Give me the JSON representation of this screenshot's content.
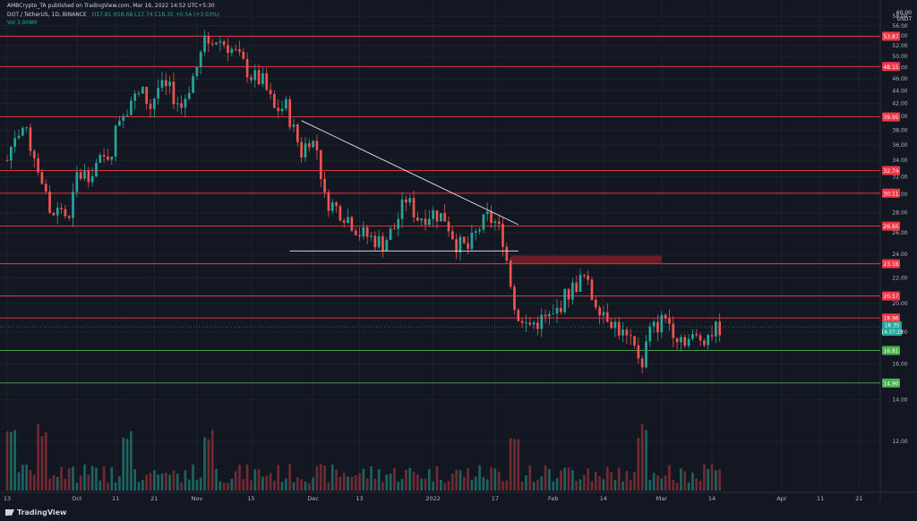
{
  "header": {
    "attribution": "AMBCrypto_TA published on TradingView.com, Mar 16, 2022 14:52 UTC+5:30",
    "symbol": "DOT / TetherUS, 1D, BINANCE",
    "ohlc": "O17.81 H18.68 L17.74 C18.35 +0.54 (+3.03%)",
    "volume": "Vol 3.908M"
  },
  "footer": {
    "brand": "TradingView"
  },
  "price_axis": {
    "unit_top": "60.00",
    "currency": "USDT"
  },
  "chart_data": {
    "type": "candlestick",
    "symbol": "DOT / TetherUS",
    "timeframe": "1D",
    "ylim": [
      10,
      60
    ],
    "yticks": [
      12,
      14,
      16,
      18,
      20,
      22,
      24,
      26,
      28,
      30,
      32,
      34,
      36,
      38,
      40,
      42,
      44,
      46,
      48,
      50,
      52,
      54,
      56,
      58
    ],
    "x_date_range": [
      "2021-09-13",
      "2022-04-23"
    ],
    "xticks": [
      {
        "label": "13",
        "date": "2021-09-13"
      },
      {
        "label": "Oct",
        "date": "2021-10-01"
      },
      {
        "label": "11",
        "date": "2021-10-11"
      },
      {
        "label": "21",
        "date": "2021-10-21"
      },
      {
        "label": "Nov",
        "date": "2021-11-01"
      },
      {
        "label": "15",
        "date": "2021-11-15"
      },
      {
        "label": "Dec",
        "date": "2021-12-01"
      },
      {
        "label": "13",
        "date": "2021-12-13"
      },
      {
        "label": "2022",
        "date": "2022-01-01"
      },
      {
        "label": "17",
        "date": "2022-01-17"
      },
      {
        "label": "Feb",
        "date": "2022-02-01"
      },
      {
        "label": "14",
        "date": "2022-02-14"
      },
      {
        "label": "Mar",
        "date": "2022-03-01"
      },
      {
        "label": "14",
        "date": "2022-03-14"
      },
      {
        "label": "Apr",
        "date": "2022-04-01"
      },
      {
        "label": "11",
        "date": "2022-04-11"
      },
      {
        "label": "21",
        "date": "2022-04-21"
      }
    ],
    "resistance_levels": [
      53.87,
      48.15,
      39.95,
      32.74,
      30.11,
      26.65,
      23.18,
      20.57,
      18.96
    ],
    "support_levels": [
      16.81,
      14.9
    ],
    "last_price": 18.35,
    "countdown": "14:37:29",
    "trendline": {
      "from": {
        "date": "2021-11-28",
        "price": 39.4
      },
      "to": {
        "date": "2022-01-23",
        "price": 26.8
      }
    },
    "horizontal_support_line": {
      "from": "2021-11-25",
      "to": "2022-01-23",
      "price": 24.3
    },
    "supply_zone": {
      "from": "2022-01-21",
      "to": "2022-03-01",
      "low": 23.2,
      "high": 23.9
    },
    "close_path": [
      [
        "2021-09-13",
        34.0
      ],
      [
        "2021-09-15",
        37.5
      ],
      [
        "2021-09-17",
        38.4
      ],
      [
        "2021-09-20",
        34.8
      ],
      [
        "2021-09-22",
        31.5
      ],
      [
        "2021-09-24",
        27.5
      ],
      [
        "2021-09-27",
        28.5
      ],
      [
        "2021-09-29",
        27.0
      ],
      [
        "2021-10-01",
        32.0
      ],
      [
        "2021-10-04",
        32.5
      ],
      [
        "2021-10-06",
        33.5
      ],
      [
        "2021-10-08",
        34.0
      ],
      [
        "2021-10-10",
        35.5
      ],
      [
        "2021-10-12",
        40.0
      ],
      [
        "2021-10-15",
        42.5
      ],
      [
        "2021-10-18",
        43.5
      ],
      [
        "2021-10-20",
        41.5
      ],
      [
        "2021-10-22",
        44.5
      ],
      [
        "2021-10-25",
        44.0
      ],
      [
        "2021-10-28",
        41.5
      ],
      [
        "2021-11-01",
        48.0
      ],
      [
        "2021-11-03",
        52.5
      ],
      [
        "2021-11-05",
        53.5
      ],
      [
        "2021-11-07",
        53.0
      ],
      [
        "2021-11-09",
        52.0
      ],
      [
        "2021-11-11",
        50.5
      ],
      [
        "2021-11-13",
        48.5
      ],
      [
        "2021-11-15",
        46.5
      ],
      [
        "2021-11-18",
        45.5
      ],
      [
        "2021-11-21",
        41.0
      ],
      [
        "2021-11-24",
        41.5
      ],
      [
        "2021-11-26",
        38.0
      ],
      [
        "2021-11-28",
        35.0
      ],
      [
        "2021-11-30",
        37.0
      ],
      [
        "2021-12-02",
        35.5
      ],
      [
        "2021-12-04",
        29.5
      ],
      [
        "2021-12-07",
        28.5
      ],
      [
        "2021-12-10",
        27.5
      ],
      [
        "2021-12-13",
        26.0
      ],
      [
        "2021-12-16",
        25.5
      ],
      [
        "2021-12-19",
        25.0
      ],
      [
        "2021-12-22",
        26.5
      ],
      [
        "2021-12-25",
        29.5
      ],
      [
        "2021-12-28",
        27.5
      ],
      [
        "2022-01-01",
        28.0
      ],
      [
        "2022-01-04",
        27.5
      ],
      [
        "2022-01-07",
        25.0
      ],
      [
        "2022-01-10",
        24.5
      ],
      [
        "2022-01-13",
        26.5
      ],
      [
        "2022-01-15",
        27.5
      ],
      [
        "2022-01-17",
        27.0
      ],
      [
        "2022-01-19",
        25.5
      ],
      [
        "2022-01-21",
        21.5
      ],
      [
        "2022-01-23",
        18.5
      ],
      [
        "2022-01-26",
        18.5
      ],
      [
        "2022-01-29",
        18.8
      ],
      [
        "2022-02-01",
        19.0
      ],
      [
        "2022-02-04",
        20.5
      ],
      [
        "2022-02-07",
        21.5
      ],
      [
        "2022-02-09",
        22.0
      ],
      [
        "2022-02-11",
        20.5
      ],
      [
        "2022-02-14",
        19.5
      ],
      [
        "2022-02-17",
        18.5
      ],
      [
        "2022-02-20",
        17.5
      ],
      [
        "2022-02-23",
        16.5
      ],
      [
        "2022-02-24",
        16.2
      ],
      [
        "2022-02-26",
        18.0
      ],
      [
        "2022-02-28",
        18.5
      ],
      [
        "2022-03-02",
        19.0
      ],
      [
        "2022-03-05",
        17.8
      ],
      [
        "2022-03-08",
        17.5
      ],
      [
        "2022-03-11",
        17.6
      ],
      [
        "2022-03-14",
        18.0
      ],
      [
        "2022-03-16",
        18.35
      ]
    ],
    "volume_spike_dates": [
      "2021-09-14",
      "2021-09-22",
      "2021-10-14",
      "2021-11-04",
      "2022-01-22",
      "2022-02-24"
    ]
  }
}
